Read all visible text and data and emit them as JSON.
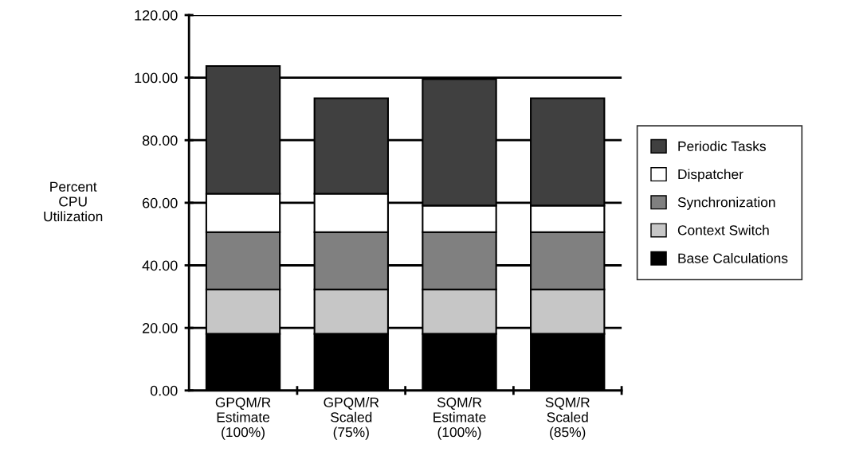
{
  "chart_data": {
    "type": "bar",
    "stacked": true,
    "ylabel": "Percent\nCPU\nUtilization",
    "categories": [
      "GPQM/R\nEstimate\n(100%)",
      "GPQM/R\nScaled\n(75%)",
      "SQM/R\nEstimate\n(100%)",
      "SQM/R\nScaled\n(85%)"
    ],
    "series": [
      {
        "name": "Base Calculations",
        "color": "#000000",
        "values": [
          18.1,
          18.1,
          18.1,
          18.1
        ]
      },
      {
        "name": "Context Switch",
        "color": "#c6c6c6",
        "values": [
          14.2,
          14.2,
          14.2,
          14.2
        ]
      },
      {
        "name": "Synchronization",
        "color": "#808080",
        "values": [
          18.3,
          18.3,
          18.3,
          18.3
        ]
      },
      {
        "name": "Dispatcher",
        "color": "#ffffff",
        "values": [
          12.3,
          12.3,
          8.5,
          8.5
        ]
      },
      {
        "name": "Periodic Tasks",
        "color": "#404040",
        "values": [
          40.8,
          30.5,
          40.4,
          34.3
        ]
      }
    ],
    "ylim": [
      0,
      120
    ],
    "yticks": [
      {
        "value": 0,
        "label": "0.00"
      },
      {
        "value": 20,
        "label": "20.00"
      },
      {
        "value": 40,
        "label": "40.00"
      },
      {
        "value": 60,
        "label": "60.00"
      },
      {
        "value": 80,
        "label": "80.00"
      },
      {
        "value": 100,
        "label": "100.00"
      },
      {
        "value": 120,
        "label": "120.00"
      }
    ],
    "grid": "y",
    "legend": "right"
  }
}
